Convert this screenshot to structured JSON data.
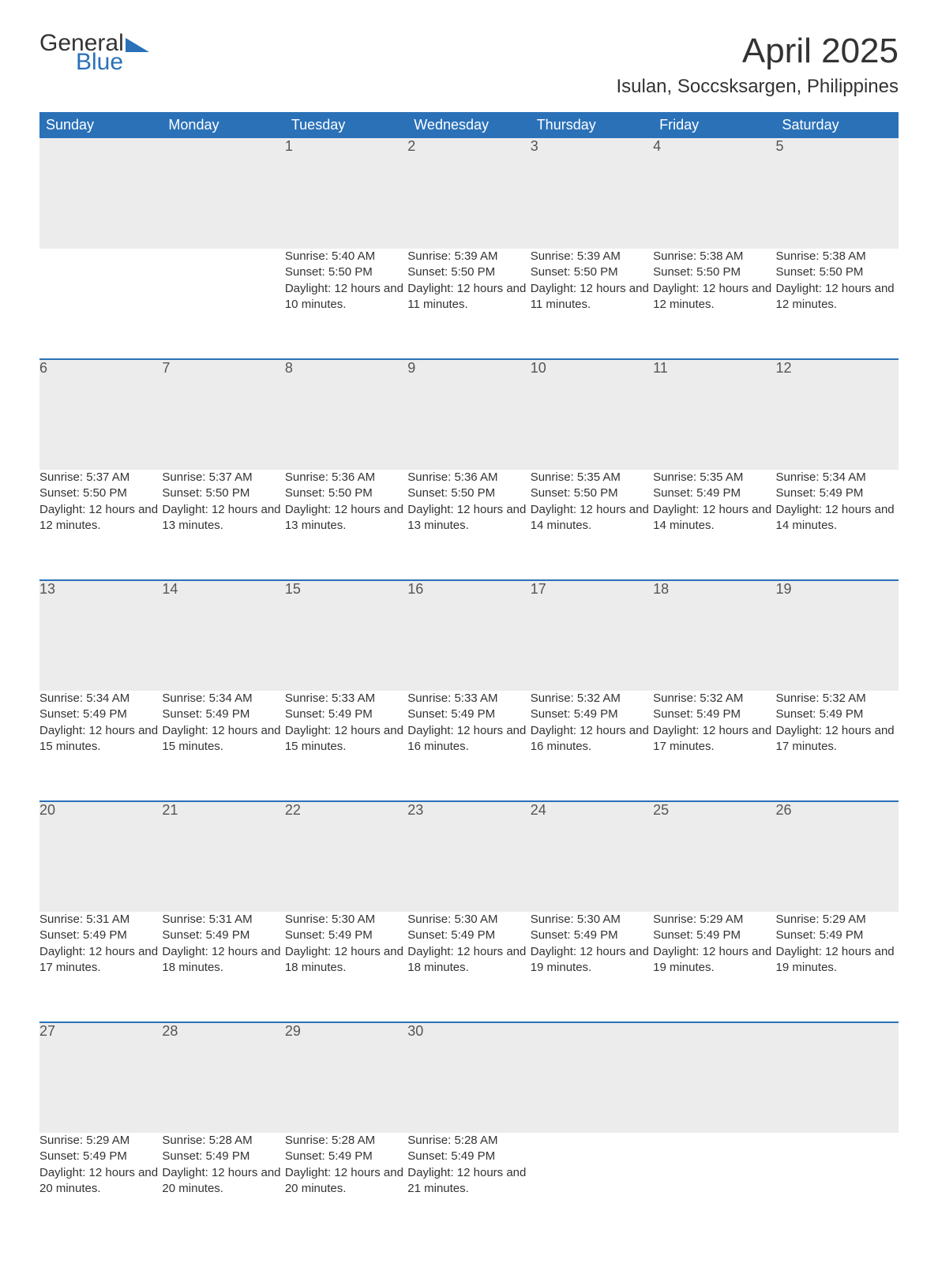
{
  "logo": {
    "word1": "General",
    "word2": "Blue",
    "accent_color": "#2a71b8"
  },
  "title": "April 2025",
  "location": "Isulan, Soccsksargen, Philippines",
  "colors": {
    "header_bg": "#2a71b8",
    "header_text": "#ffffff",
    "daynum_bg": "#ececec",
    "row_border": "#2a71b8",
    "text": "#333333"
  },
  "typography": {
    "title_fontsize": 44,
    "location_fontsize": 24,
    "weekday_fontsize": 18,
    "daynum_fontsize": 18,
    "body_fontsize": 15
  },
  "weekdays": [
    "Sunday",
    "Monday",
    "Tuesday",
    "Wednesday",
    "Thursday",
    "Friday",
    "Saturday"
  ],
  "weeks": [
    [
      null,
      null,
      {
        "n": "1",
        "sunrise": "5:40 AM",
        "sunset": "5:50 PM",
        "daylight": "12 hours and 10 minutes."
      },
      {
        "n": "2",
        "sunrise": "5:39 AM",
        "sunset": "5:50 PM",
        "daylight": "12 hours and 11 minutes."
      },
      {
        "n": "3",
        "sunrise": "5:39 AM",
        "sunset": "5:50 PM",
        "daylight": "12 hours and 11 minutes."
      },
      {
        "n": "4",
        "sunrise": "5:38 AM",
        "sunset": "5:50 PM",
        "daylight": "12 hours and 12 minutes."
      },
      {
        "n": "5",
        "sunrise": "5:38 AM",
        "sunset": "5:50 PM",
        "daylight": "12 hours and 12 minutes."
      }
    ],
    [
      {
        "n": "6",
        "sunrise": "5:37 AM",
        "sunset": "5:50 PM",
        "daylight": "12 hours and 12 minutes."
      },
      {
        "n": "7",
        "sunrise": "5:37 AM",
        "sunset": "5:50 PM",
        "daylight": "12 hours and 13 minutes."
      },
      {
        "n": "8",
        "sunrise": "5:36 AM",
        "sunset": "5:50 PM",
        "daylight": "12 hours and 13 minutes."
      },
      {
        "n": "9",
        "sunrise": "5:36 AM",
        "sunset": "5:50 PM",
        "daylight": "12 hours and 13 minutes."
      },
      {
        "n": "10",
        "sunrise": "5:35 AM",
        "sunset": "5:50 PM",
        "daylight": "12 hours and 14 minutes."
      },
      {
        "n": "11",
        "sunrise": "5:35 AM",
        "sunset": "5:49 PM",
        "daylight": "12 hours and 14 minutes."
      },
      {
        "n": "12",
        "sunrise": "5:34 AM",
        "sunset": "5:49 PM",
        "daylight": "12 hours and 14 minutes."
      }
    ],
    [
      {
        "n": "13",
        "sunrise": "5:34 AM",
        "sunset": "5:49 PM",
        "daylight": "12 hours and 15 minutes."
      },
      {
        "n": "14",
        "sunrise": "5:34 AM",
        "sunset": "5:49 PM",
        "daylight": "12 hours and 15 minutes."
      },
      {
        "n": "15",
        "sunrise": "5:33 AM",
        "sunset": "5:49 PM",
        "daylight": "12 hours and 15 minutes."
      },
      {
        "n": "16",
        "sunrise": "5:33 AM",
        "sunset": "5:49 PM",
        "daylight": "12 hours and 16 minutes."
      },
      {
        "n": "17",
        "sunrise": "5:32 AM",
        "sunset": "5:49 PM",
        "daylight": "12 hours and 16 minutes."
      },
      {
        "n": "18",
        "sunrise": "5:32 AM",
        "sunset": "5:49 PM",
        "daylight": "12 hours and 17 minutes."
      },
      {
        "n": "19",
        "sunrise": "5:32 AM",
        "sunset": "5:49 PM",
        "daylight": "12 hours and 17 minutes."
      }
    ],
    [
      {
        "n": "20",
        "sunrise": "5:31 AM",
        "sunset": "5:49 PM",
        "daylight": "12 hours and 17 minutes."
      },
      {
        "n": "21",
        "sunrise": "5:31 AM",
        "sunset": "5:49 PM",
        "daylight": "12 hours and 18 minutes."
      },
      {
        "n": "22",
        "sunrise": "5:30 AM",
        "sunset": "5:49 PM",
        "daylight": "12 hours and 18 minutes."
      },
      {
        "n": "23",
        "sunrise": "5:30 AM",
        "sunset": "5:49 PM",
        "daylight": "12 hours and 18 minutes."
      },
      {
        "n": "24",
        "sunrise": "5:30 AM",
        "sunset": "5:49 PM",
        "daylight": "12 hours and 19 minutes."
      },
      {
        "n": "25",
        "sunrise": "5:29 AM",
        "sunset": "5:49 PM",
        "daylight": "12 hours and 19 minutes."
      },
      {
        "n": "26",
        "sunrise": "5:29 AM",
        "sunset": "5:49 PM",
        "daylight": "12 hours and 19 minutes."
      }
    ],
    [
      {
        "n": "27",
        "sunrise": "5:29 AM",
        "sunset": "5:49 PM",
        "daylight": "12 hours and 20 minutes."
      },
      {
        "n": "28",
        "sunrise": "5:28 AM",
        "sunset": "5:49 PM",
        "daylight": "12 hours and 20 minutes."
      },
      {
        "n": "29",
        "sunrise": "5:28 AM",
        "sunset": "5:49 PM",
        "daylight": "12 hours and 20 minutes."
      },
      {
        "n": "30",
        "sunrise": "5:28 AM",
        "sunset": "5:49 PM",
        "daylight": "12 hours and 21 minutes."
      },
      null,
      null,
      null
    ]
  ],
  "labels": {
    "sunrise": "Sunrise: ",
    "sunset": "Sunset: ",
    "daylight": "Daylight: "
  }
}
